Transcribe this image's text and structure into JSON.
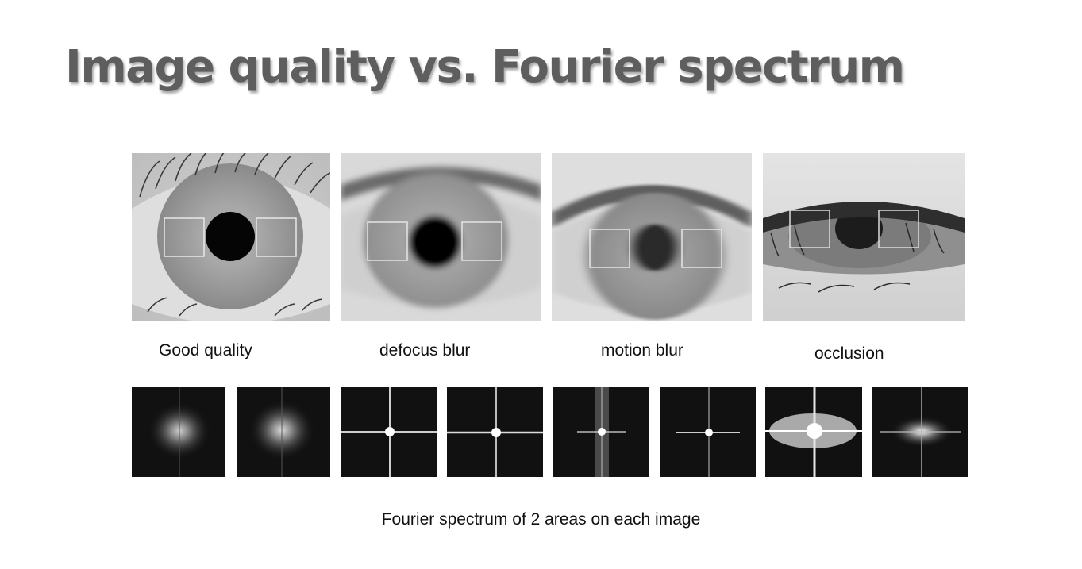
{
  "slide": {
    "title": "Image quality vs. Fourier spectrum",
    "footer": "Fourier spectrum of 2 areas on each image"
  },
  "panels": [
    {
      "caption": "Good quality"
    },
    {
      "caption": "defocus blur"
    },
    {
      "caption": "motion blur"
    },
    {
      "caption": "occlusion"
    }
  ]
}
